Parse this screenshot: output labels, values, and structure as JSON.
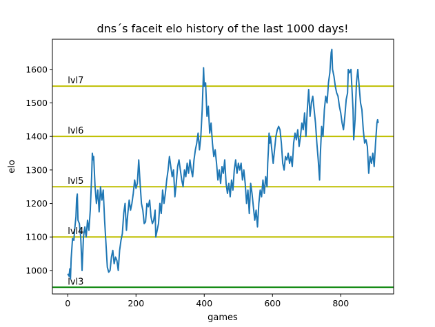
{
  "chart_data": {
    "type": "line",
    "title": "dns´s faceit elo history of the last 1000 days!",
    "xlabel": "games",
    "ylabel": "elo",
    "xlim": [
      -45,
      955
    ],
    "ylim": [
      930,
      1690
    ],
    "x_ticks": [
      0,
      200,
      400,
      600,
      800
    ],
    "y_ticks": [
      1000,
      1100,
      1200,
      1300,
      1400,
      1500,
      1600
    ],
    "grid": false,
    "line_color": "#1f77b4",
    "series": [
      {
        "points": [
          [
            0,
            990
          ],
          [
            4,
            983
          ],
          [
            6,
            1005
          ],
          [
            8,
            975
          ],
          [
            10,
            1035
          ],
          [
            14,
            1095
          ],
          [
            18,
            1090
          ],
          [
            20,
            1120
          ],
          [
            24,
            1160
          ],
          [
            26,
            1215
          ],
          [
            28,
            1228
          ],
          [
            30,
            1150
          ],
          [
            34,
            1140
          ],
          [
            38,
            1100
          ],
          [
            42,
            1000
          ],
          [
            46,
            1100
          ],
          [
            50,
            1130
          ],
          [
            54,
            1100
          ],
          [
            58,
            1150
          ],
          [
            62,
            1120
          ],
          [
            66,
            1180
          ],
          [
            70,
            1280
          ],
          [
            72,
            1350
          ],
          [
            74,
            1330
          ],
          [
            76,
            1340
          ],
          [
            80,
            1250
          ],
          [
            84,
            1200
          ],
          [
            88,
            1240
          ],
          [
            92,
            1175
          ],
          [
            96,
            1250
          ],
          [
            100,
            1210
          ],
          [
            104,
            1240
          ],
          [
            108,
            1150
          ],
          [
            112,
            1080
          ],
          [
            114,
            1045
          ],
          [
            116,
            1010
          ],
          [
            120,
            995
          ],
          [
            124,
            1000
          ],
          [
            128,
            1040
          ],
          [
            132,
            1060
          ],
          [
            136,
            1020
          ],
          [
            140,
            1040
          ],
          [
            144,
            1030
          ],
          [
            148,
            1000
          ],
          [
            152,
            1060
          ],
          [
            156,
            1090
          ],
          [
            160,
            1110
          ],
          [
            164,
            1170
          ],
          [
            168,
            1200
          ],
          [
            172,
            1120
          ],
          [
            176,
            1170
          ],
          [
            180,
            1210
          ],
          [
            184,
            1180
          ],
          [
            188,
            1200
          ],
          [
            192,
            1230
          ],
          [
            196,
            1270
          ],
          [
            200,
            1245
          ],
          [
            204,
            1260
          ],
          [
            208,
            1330
          ],
          [
            212,
            1260
          ],
          [
            216,
            1200
          ],
          [
            220,
            1180
          ],
          [
            224,
            1140
          ],
          [
            228,
            1145
          ],
          [
            232,
            1200
          ],
          [
            236,
            1190
          ],
          [
            240,
            1210
          ],
          [
            244,
            1160
          ],
          [
            248,
            1140
          ],
          [
            252,
            1150
          ],
          [
            256,
            1180
          ],
          [
            258,
            1100
          ],
          [
            262,
            1120
          ],
          [
            266,
            1140
          ],
          [
            270,
            1200
          ],
          [
            274,
            1170
          ],
          [
            278,
            1240
          ],
          [
            282,
            1200
          ],
          [
            286,
            1230
          ],
          [
            290,
            1270
          ],
          [
            294,
            1300
          ],
          [
            298,
            1340
          ],
          [
            302,
            1310
          ],
          [
            306,
            1280
          ],
          [
            310,
            1300
          ],
          [
            314,
            1220
          ],
          [
            318,
            1260
          ],
          [
            322,
            1310
          ],
          [
            326,
            1330
          ],
          [
            330,
            1300
          ],
          [
            334,
            1270
          ],
          [
            338,
            1250
          ],
          [
            342,
            1300
          ],
          [
            346,
            1280
          ],
          [
            350,
            1320
          ],
          [
            354,
            1290
          ],
          [
            358,
            1330
          ],
          [
            362,
            1300
          ],
          [
            366,
            1280
          ],
          [
            370,
            1330
          ],
          [
            374,
            1360
          ],
          [
            378,
            1380
          ],
          [
            382,
            1410
          ],
          [
            386,
            1360
          ],
          [
            390,
            1400
          ],
          [
            394,
            1480
          ],
          [
            396,
            1540
          ],
          [
            398,
            1605
          ],
          [
            400,
            1550
          ],
          [
            404,
            1560
          ],
          [
            408,
            1460
          ],
          [
            412,
            1490
          ],
          [
            416,
            1410
          ],
          [
            420,
            1440
          ],
          [
            424,
            1380
          ],
          [
            428,
            1340
          ],
          [
            432,
            1360
          ],
          [
            436,
            1320
          ],
          [
            440,
            1270
          ],
          [
            444,
            1300
          ],
          [
            448,
            1260
          ],
          [
            452,
            1310
          ],
          [
            456,
            1290
          ],
          [
            460,
            1330
          ],
          [
            464,
            1260
          ],
          [
            468,
            1230
          ],
          [
            472,
            1260
          ],
          [
            476,
            1220
          ],
          [
            480,
            1270
          ],
          [
            484,
            1240
          ],
          [
            488,
            1300
          ],
          [
            492,
            1330
          ],
          [
            496,
            1290
          ],
          [
            500,
            1320
          ],
          [
            504,
            1300
          ],
          [
            508,
            1320
          ],
          [
            512,
            1270
          ],
          [
            516,
            1300
          ],
          [
            520,
            1260
          ],
          [
            524,
            1200
          ],
          [
            528,
            1240
          ],
          [
            532,
            1170
          ],
          [
            536,
            1260
          ],
          [
            540,
            1230
          ],
          [
            544,
            1190
          ],
          [
            548,
            1150
          ],
          [
            552,
            1180
          ],
          [
            556,
            1130
          ],
          [
            560,
            1200
          ],
          [
            564,
            1240
          ],
          [
            568,
            1220
          ],
          [
            572,
            1270
          ],
          [
            576,
            1230
          ],
          [
            580,
            1280
          ],
          [
            584,
            1250
          ],
          [
            586,
            1320
          ],
          [
            588,
            1360
          ],
          [
            590,
            1410
          ],
          [
            592,
            1380
          ],
          [
            594,
            1400
          ],
          [
            598,
            1360
          ],
          [
            602,
            1320
          ],
          [
            606,
            1360
          ],
          [
            610,
            1400
          ],
          [
            614,
            1420
          ],
          [
            618,
            1430
          ],
          [
            622,
            1420
          ],
          [
            626,
            1380
          ],
          [
            630,
            1320
          ],
          [
            634,
            1300
          ],
          [
            638,
            1340
          ],
          [
            642,
            1330
          ],
          [
            646,
            1350
          ],
          [
            650,
            1320
          ],
          [
            654,
            1340
          ],
          [
            658,
            1310
          ],
          [
            662,
            1380
          ],
          [
            666,
            1410
          ],
          [
            670,
            1390
          ],
          [
            674,
            1420
          ],
          [
            678,
            1370
          ],
          [
            682,
            1400
          ],
          [
            686,
            1440
          ],
          [
            690,
            1420
          ],
          [
            694,
            1470
          ],
          [
            698,
            1400
          ],
          [
            702,
            1480
          ],
          [
            706,
            1540
          ],
          [
            710,
            1460
          ],
          [
            714,
            1500
          ],
          [
            718,
            1520
          ],
          [
            722,
            1480
          ],
          [
            726,
            1440
          ],
          [
            730,
            1380
          ],
          [
            734,
            1330
          ],
          [
            738,
            1270
          ],
          [
            740,
            1340
          ],
          [
            744,
            1430
          ],
          [
            748,
            1400
          ],
          [
            752,
            1480
          ],
          [
            756,
            1520
          ],
          [
            760,
            1500
          ],
          [
            764,
            1560
          ],
          [
            768,
            1590
          ],
          [
            770,
            1620
          ],
          [
            772,
            1650
          ],
          [
            774,
            1660
          ],
          [
            776,
            1600
          ],
          [
            780,
            1580
          ],
          [
            784,
            1550
          ],
          [
            788,
            1530
          ],
          [
            792,
            1520
          ],
          [
            796,
            1490
          ],
          [
            800,
            1470
          ],
          [
            804,
            1440
          ],
          [
            808,
            1420
          ],
          [
            812,
            1460
          ],
          [
            816,
            1510
          ],
          [
            820,
            1530
          ],
          [
            822,
            1600
          ],
          [
            826,
            1590
          ],
          [
            830,
            1600
          ],
          [
            834,
            1520
          ],
          [
            836,
            1480
          ],
          [
            838,
            1390
          ],
          [
            842,
            1450
          ],
          [
            846,
            1560
          ],
          [
            850,
            1600
          ],
          [
            854,
            1550
          ],
          [
            858,
            1500
          ],
          [
            862,
            1480
          ],
          [
            866,
            1420
          ],
          [
            870,
            1380
          ],
          [
            874,
            1390
          ],
          [
            878,
            1370
          ],
          [
            882,
            1290
          ],
          [
            886,
            1340
          ],
          [
            890,
            1320
          ],
          [
            894,
            1350
          ],
          [
            898,
            1310
          ],
          [
            902,
            1380
          ],
          [
            906,
            1440
          ],
          [
            908,
            1450
          ],
          [
            910,
            1440
          ]
        ]
      }
    ],
    "reference_lines": [
      {
        "label": "lvl7",
        "value": 1550,
        "color": "#bfbf00"
      },
      {
        "label": "lvl6",
        "value": 1400,
        "color": "#bfbf00"
      },
      {
        "label": "lvl5",
        "value": 1250,
        "color": "#bfbf00"
      },
      {
        "label": "lvl4",
        "value": 1100,
        "color": "#bfbf00"
      },
      {
        "label": "lvl3",
        "value": 950,
        "color": "#008000"
      }
    ]
  }
}
